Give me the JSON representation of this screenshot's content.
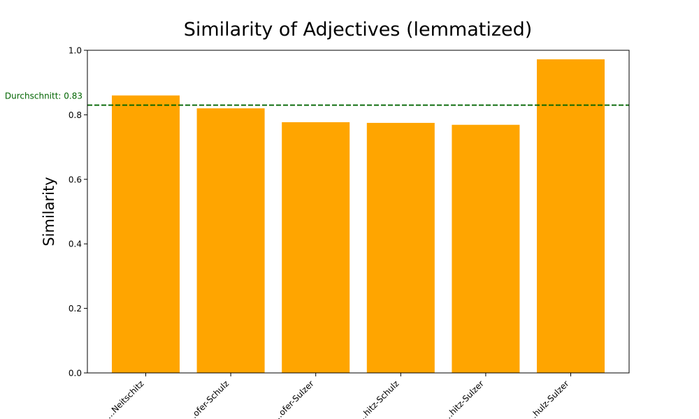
{
  "chart_data": {
    "type": "bar",
    "title": "Similarity of Adjectives (lemmatized)",
    "xlabel": "",
    "ylabel": "Similarity",
    "ylim": [
      0,
      1.0
    ],
    "yticks": [
      0.0,
      0.2,
      0.4,
      0.6,
      0.8,
      1.0
    ],
    "ytick_labels": [
      "0.0",
      "0.2",
      "0.4",
      "0.6",
      "0.8",
      "1.0"
    ],
    "categories": [
      "…Neitschitz",
      "…ofer-Schulz",
      "…ofer-Sulzer",
      "…hitz-Schulz",
      "…hitz-Sulzer",
      "…hulz-Sulzer"
    ],
    "category_labels": [
      "…Neitschitz",
      "…ofer-Schulz",
      "…ofer-Sulzer",
      "…hitz-Schulz",
      "…hitz-Sulzer",
      "…hulz-Sulzer"
    ],
    "values": [
      0.86,
      0.82,
      0.777,
      0.775,
      0.769,
      0.972
    ],
    "bar_color": "#ffa500",
    "average": {
      "value": 0.83,
      "label": "Durchschnitt: 0.83",
      "color": "#006400",
      "style": "dashed"
    },
    "grid": false,
    "legend": "none"
  }
}
